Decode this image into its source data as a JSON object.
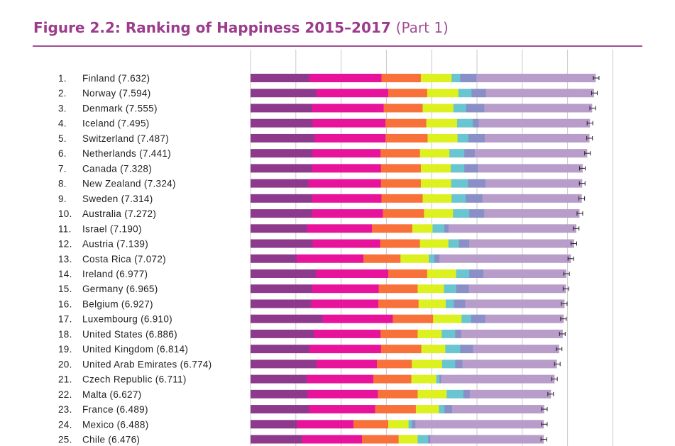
{
  "figure": {
    "title_bold": "Figure 2.2: Ranking of Happiness 2015–2017",
    "title_part": "(Part 1)"
  },
  "chart_data": {
    "type": "bar",
    "stacked": true,
    "orientation": "horizontal",
    "xlim": [
      0,
      8
    ],
    "grid": true,
    "legend": "none",
    "components_colors": [
      "#8e3a8c",
      "#e8139b",
      "#f8703a",
      "#ddf020",
      "#69c5d0",
      "#8a8fc7",
      "#b89cca"
    ],
    "rows": [
      {
        "rank": "1.",
        "country": "Finland (7.632)",
        "score": 7.632,
        "segments": [
          1.3,
          1.59,
          0.87,
          0.68,
          0.19,
          0.36,
          2.63
        ]
      },
      {
        "rank": "2.",
        "country": "Norway (7.594)",
        "score": 7.594,
        "segments": [
          1.46,
          1.58,
          0.86,
          0.69,
          0.29,
          0.32,
          2.38
        ]
      },
      {
        "rank": "3.",
        "country": "Denmark (7.555)",
        "score": 7.555,
        "segments": [
          1.36,
          1.58,
          0.86,
          0.68,
          0.28,
          0.4,
          2.38
        ]
      },
      {
        "rank": "4.",
        "country": "Iceland (7.495)",
        "score": 7.495,
        "segments": [
          1.37,
          1.61,
          0.9,
          0.68,
          0.35,
          0.13,
          2.45
        ]
      },
      {
        "rank": "5.",
        "country": "Switzerland (7.487)",
        "score": 7.487,
        "segments": [
          1.42,
          1.56,
          0.93,
          0.66,
          0.24,
          0.36,
          2.31
        ]
      },
      {
        "rank": "6.",
        "country": "Netherlands (7.441)",
        "score": 7.441,
        "segments": [
          1.37,
          1.5,
          0.87,
          0.65,
          0.33,
          0.23,
          2.48
        ]
      },
      {
        "rank": "7.",
        "country": "Canada (7.328)",
        "score": 7.328,
        "segments": [
          1.36,
          1.52,
          0.88,
          0.66,
          0.3,
          0.3,
          2.31
        ]
      },
      {
        "rank": "8.",
        "country": "New Zealand (7.324)",
        "score": 7.324,
        "segments": [
          1.28,
          1.6,
          0.88,
          0.67,
          0.37,
          0.39,
          2.13
        ]
      },
      {
        "rank": "9.",
        "country": "Sweden (7.314)",
        "score": 7.314,
        "segments": [
          1.36,
          1.53,
          0.91,
          0.64,
          0.31,
          0.37,
          2.19
        ]
      },
      {
        "rank": "10.",
        "country": "Australia (7.272)",
        "score": 7.272,
        "segments": [
          1.36,
          1.56,
          0.91,
          0.64,
          0.36,
          0.33,
          2.1
        ]
      },
      {
        "rank": "11.",
        "country": "Israel (7.190)",
        "score": 7.19,
        "segments": [
          1.25,
          1.43,
          0.89,
          0.45,
          0.26,
          0.09,
          2.82
        ]
      },
      {
        "rank": "12.",
        "country": "Austria (7.139)",
        "score": 7.139,
        "segments": [
          1.37,
          1.49,
          0.88,
          0.63,
          0.23,
          0.23,
          2.31
        ]
      },
      {
        "rank": "13.",
        "country": "Costa Rica (7.072)",
        "score": 7.072,
        "segments": [
          1.02,
          1.47,
          0.82,
          0.63,
          0.12,
          0.11,
          2.9
        ]
      },
      {
        "rank": "14.",
        "country": "Ireland (6.977)",
        "score": 6.977,
        "segments": [
          1.45,
          1.59,
          0.86,
          0.64,
          0.29,
          0.31,
          1.83
        ]
      },
      {
        "rank": "15.",
        "country": "Germany (6.965)",
        "score": 6.965,
        "segments": [
          1.36,
          1.47,
          0.86,
          0.58,
          0.27,
          0.28,
          2.14
        ]
      },
      {
        "rank": "16.",
        "country": "Belgium (6.927)",
        "score": 6.927,
        "segments": [
          1.34,
          1.48,
          0.89,
          0.6,
          0.18,
          0.25,
          2.19
        ]
      },
      {
        "rank": "17.",
        "country": "Luxembourg (6.910)",
        "score": 6.91,
        "segments": [
          1.59,
          1.55,
          0.89,
          0.63,
          0.21,
          0.31,
          1.73
        ]
      },
      {
        "rank": "18.",
        "country": "United States (6.886)",
        "score": 6.886,
        "segments": [
          1.4,
          1.47,
          0.82,
          0.53,
          0.3,
          0.13,
          2.24
        ]
      },
      {
        "rank": "19.",
        "country": "United Kingdom (6.814)",
        "score": 6.814,
        "segments": [
          1.3,
          1.58,
          0.89,
          0.53,
          0.33,
          0.28,
          1.9
        ]
      },
      {
        "rank": "20.",
        "country": "United Arab Emirates (6.774)",
        "score": 6.774,
        "segments": [
          1.46,
          1.33,
          0.77,
          0.67,
          0.29,
          0.16,
          2.08
        ]
      },
      {
        "rank": "21.",
        "country": "Czech Republic (6.711)",
        "score": 6.711,
        "segments": [
          1.24,
          1.47,
          0.84,
          0.55,
          0.07,
          0.04,
          2.5
        ]
      },
      {
        "rank": "22.",
        "country": "Malta (6.627)",
        "score": 6.627,
        "segments": [
          1.26,
          1.55,
          0.88,
          0.64,
          0.37,
          0.14,
          1.79
        ]
      },
      {
        "rank": "23.",
        "country": "France (6.489)",
        "score": 6.489,
        "segments": [
          1.29,
          1.46,
          0.9,
          0.51,
          0.12,
          0.17,
          2.03
        ]
      },
      {
        "rank": "24.",
        "country": "Mexico (6.488)",
        "score": 6.488,
        "segments": [
          1.03,
          1.24,
          0.77,
          0.45,
          0.07,
          0.08,
          2.83
        ]
      },
      {
        "rank": "25.",
        "country": "Chile (6.476)",
        "score": 6.476,
        "segments": [
          1.14,
          1.32,
          0.81,
          0.42,
          0.23,
          0.05,
          2.5
        ]
      }
    ]
  }
}
